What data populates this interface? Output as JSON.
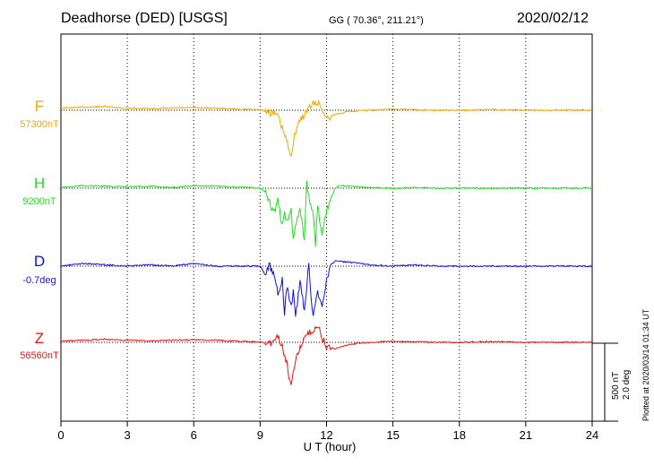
{
  "header": {
    "title": "Deadhorse (DED)  [USGS]",
    "coords": "GG ( 70.36°, 211.21°)",
    "date": "2020/02/12"
  },
  "chart_data": {
    "type": "line",
    "title": "Deadhorse (DED)  [USGS]",
    "xlabel": "U T (hour)",
    "xlim": [
      0,
      24
    ],
    "xticks": [
      0,
      3,
      6,
      9,
      12,
      15,
      18,
      21,
      24
    ],
    "grid": true,
    "series": [
      {
        "name": "F",
        "baseline": "57300nT",
        "color": "#f0a800",
        "x": [
          0,
          1,
          2,
          3,
          4,
          5,
          6,
          7,
          8,
          9,
          9.4,
          9.6,
          9.8,
          10.0,
          10.2,
          10.3,
          10.4,
          10.5,
          10.6,
          10.8,
          11.0,
          11.2,
          11.4,
          11.6,
          11.8,
          12.0,
          12.4,
          13,
          14,
          15,
          16,
          17,
          18,
          19,
          20,
          21,
          22,
          23,
          24
        ],
        "values": [
          20,
          30,
          35,
          20,
          15,
          20,
          25,
          20,
          10,
          5,
          -20,
          -30,
          -60,
          -180,
          -300,
          -380,
          -420,
          -320,
          -200,
          -100,
          -40,
          20,
          60,
          80,
          10,
          -80,
          -40,
          -10,
          0,
          10,
          5,
          0,
          0,
          5,
          5,
          0,
          0,
          0,
          0
        ]
      },
      {
        "name": "H",
        "baseline": "9200nT",
        "color": "#22dd22",
        "x": [
          0,
          1,
          2,
          3,
          4,
          5,
          6,
          7,
          8,
          9,
          9.2,
          9.4,
          9.6,
          9.8,
          10.0,
          10.1,
          10.2,
          10.4,
          10.5,
          10.6,
          10.8,
          11.0,
          11.1,
          11.2,
          11.4,
          11.5,
          11.6,
          11.8,
          12.0,
          12.2,
          12.4,
          12.6,
          13,
          14,
          15,
          16,
          17,
          18,
          19,
          20,
          21,
          22,
          23,
          24
        ],
        "values": [
          10,
          40,
          30,
          20,
          30,
          10,
          40,
          30,
          20,
          0,
          -50,
          -200,
          -400,
          -200,
          -600,
          -350,
          -550,
          -350,
          -800,
          -600,
          -300,
          -800,
          120,
          -150,
          -400,
          -900,
          -300,
          -700,
          -350,
          -150,
          0,
          40,
          30,
          10,
          0,
          10,
          0,
          0,
          0,
          0,
          0,
          0,
          0,
          0
        ]
      },
      {
        "name": "D",
        "baseline": "-0.7deg",
        "color": "#1010dd",
        "x": [
          0,
          1,
          2,
          3,
          4,
          5,
          6,
          7,
          8,
          9,
          9.2,
          9.4,
          9.6,
          9.8,
          10.0,
          10.1,
          10.2,
          10.4,
          10.5,
          10.6,
          10.8,
          11.0,
          11.2,
          11.3,
          11.4,
          11.6,
          11.8,
          12.0,
          12.2,
          12.4,
          13,
          14,
          15,
          16,
          17,
          18,
          19,
          20,
          21,
          22,
          23,
          24
        ],
        "values": [
          0,
          0.2,
          0.1,
          0,
          0.1,
          0,
          0.2,
          0,
          0,
          0,
          -0.6,
          0.1,
          -0.5,
          -2.0,
          -1.0,
          -3.6,
          -1.5,
          -3.0,
          -2.0,
          -3.8,
          -1.2,
          -3.4,
          0.2,
          -2.6,
          -3.7,
          -2.0,
          -3.0,
          -1.0,
          0.1,
          0.4,
          0.3,
          0.1,
          0,
          0.1,
          0,
          0,
          0,
          0,
          0,
          0,
          0,
          0
        ]
      },
      {
        "name": "Z",
        "baseline": "56560nT",
        "color": "#ee1111",
        "x": [
          0,
          1,
          2,
          3,
          4,
          5,
          6,
          7,
          8,
          9,
          9.4,
          9.6,
          9.8,
          10.0,
          10.2,
          10.3,
          10.4,
          10.5,
          10.6,
          10.8,
          11.0,
          11.2,
          11.4,
          11.6,
          11.8,
          12.0,
          12.4,
          13,
          14,
          15,
          16,
          17,
          18,
          19,
          20,
          21,
          22,
          23,
          24
        ],
        "values": [
          10,
          20,
          30,
          20,
          15,
          20,
          25,
          20,
          10,
          5,
          -20,
          30,
          60,
          -30,
          -200,
          -350,
          -380,
          -300,
          -150,
          -50,
          30,
          80,
          120,
          150,
          50,
          -50,
          -60,
          -20,
          0,
          10,
          5,
          0,
          0,
          5,
          5,
          0,
          0,
          0,
          0
        ]
      }
    ]
  },
  "scale": {
    "nt": "500 nT",
    "deg": "2.0 deg"
  },
  "plotted": "Plotted at 2020/03/14 01:34 UT"
}
